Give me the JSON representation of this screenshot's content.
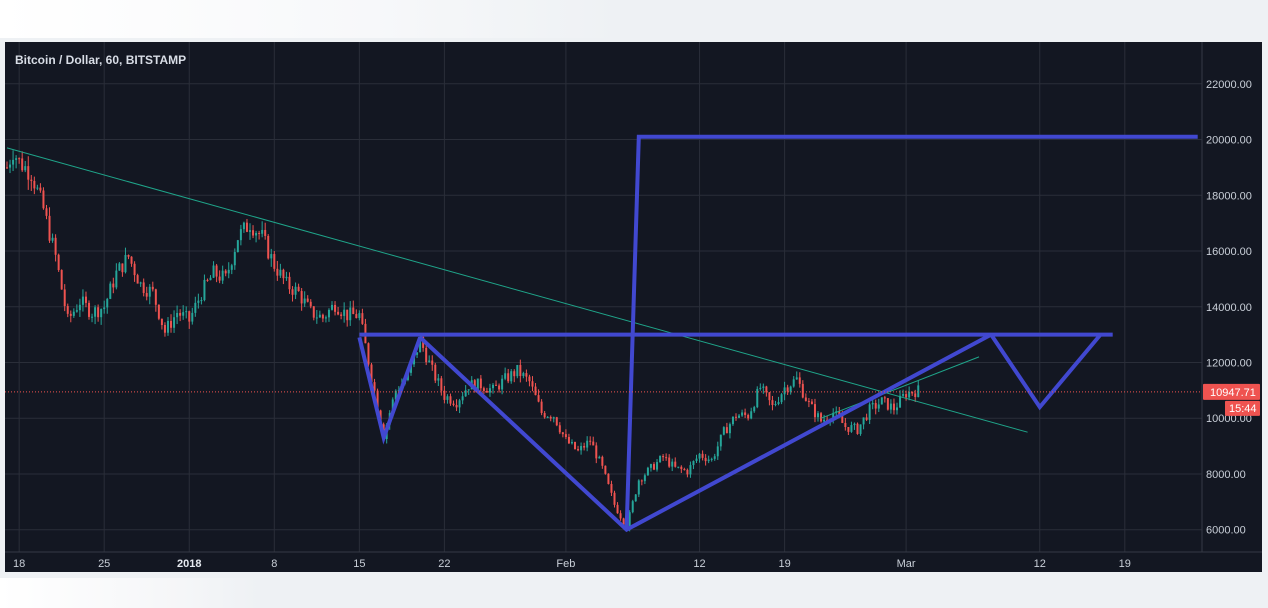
{
  "app": {
    "symbol_title": "Bitcoin / Dollar, 60, BITSTAMP"
  },
  "colors": {
    "background": "#131722",
    "grid": "#2a2e39",
    "up": "#26a69a",
    "down": "#ef5350",
    "drawing": "#4148d0",
    "trendline": "#1fa58a",
    "price_line": "#ef5350"
  },
  "chart_data": {
    "type": "candlestick",
    "title": "Bitcoin / Dollar, 60, BITSTAMP",
    "timeframe": "60",
    "exchange": "BITSTAMP",
    "x_axis": {
      "start_date": "2017-12-17",
      "end_date": "2018-03-25",
      "tick_labels": [
        {
          "label": "18",
          "date": "2017-12-18"
        },
        {
          "label": "25",
          "date": "2017-12-25"
        },
        {
          "label": "2018",
          "date": "2018-01-01",
          "bold": true
        },
        {
          "label": "8",
          "date": "2018-01-08"
        },
        {
          "label": "15",
          "date": "2018-01-15"
        },
        {
          "label": "22",
          "date": "2018-01-22"
        },
        {
          "label": "Feb",
          "date": "2018-02-01"
        },
        {
          "label": "12",
          "date": "2018-02-12"
        },
        {
          "label": "19",
          "date": "2018-02-19"
        },
        {
          "label": "Mar",
          "date": "2018-03-01"
        },
        {
          "label": "12",
          "date": "2018-03-12"
        },
        {
          "label": "19",
          "date": "2018-03-19"
        }
      ]
    },
    "y_axis": {
      "range": [
        5200,
        23500
      ],
      "ticks": [
        "6000.00",
        "8000.00",
        "10000.00",
        "12000.00",
        "14000.00",
        "16000.00",
        "18000.00",
        "20000.00",
        "22000.00"
      ]
    },
    "last_price": {
      "value": 10947.71,
      "label": "10947.71",
      "countdown": "15:44"
    },
    "price_path": [
      [
        "2017-12-17",
        19000
      ],
      [
        "2017-12-17T12",
        19600
      ],
      [
        "2017-12-18",
        19200
      ],
      [
        "2017-12-19",
        18800
      ],
      [
        "2017-12-20",
        17500
      ],
      [
        "2017-12-21",
        15800
      ],
      [
        "2017-12-22",
        13500
      ],
      [
        "2017-12-23",
        14200
      ],
      [
        "2017-12-24",
        13800
      ],
      [
        "2017-12-25",
        14000
      ],
      [
        "2017-12-26",
        15200
      ],
      [
        "2017-12-27",
        15800
      ],
      [
        "2017-12-28",
        14800
      ],
      [
        "2017-12-29",
        14500
      ],
      [
        "2017-12-30",
        13100
      ],
      [
        "2017-12-31",
        13800
      ],
      [
        "2018-01-01",
        13500
      ],
      [
        "2018-01-02",
        14500
      ],
      [
        "2018-01-03",
        15200
      ],
      [
        "2018-01-04",
        15000
      ],
      [
        "2018-01-05",
        16500
      ],
      [
        "2018-01-06",
        17000
      ],
      [
        "2018-01-07",
        16500
      ],
      [
        "2018-01-08",
        15500
      ],
      [
        "2018-01-09",
        14800
      ],
      [
        "2018-01-10",
        14500
      ],
      [
        "2018-01-11",
        13800
      ],
      [
        "2018-01-12",
        13600
      ],
      [
        "2018-01-13",
        14100
      ],
      [
        "2018-01-14",
        13700
      ],
      [
        "2018-01-15",
        13700
      ],
      [
        "2018-01-16",
        11500
      ],
      [
        "2018-01-17",
        9400
      ],
      [
        "2018-01-18",
        11000
      ],
      [
        "2018-01-19",
        11500
      ],
      [
        "2018-01-20",
        12800
      ],
      [
        "2018-01-21",
        11700
      ],
      [
        "2018-01-22",
        10800
      ],
      [
        "2018-01-23",
        10600
      ],
      [
        "2018-01-24",
        11200
      ],
      [
        "2018-01-25",
        11200
      ],
      [
        "2018-01-26",
        11000
      ],
      [
        "2018-01-27",
        11400
      ],
      [
        "2018-01-28",
        11700
      ],
      [
        "2018-01-29",
        11300
      ],
      [
        "2018-01-30",
        10200
      ],
      [
        "2018-01-31",
        10100
      ],
      [
        "2018-02-01",
        9200
      ],
      [
        "2018-02-02",
        8800
      ],
      [
        "2018-02-03",
        9200
      ],
      [
        "2018-02-04",
        8200
      ],
      [
        "2018-02-05",
        6900
      ],
      [
        "2018-02-06",
        6100
      ],
      [
        "2018-02-07",
        7800
      ],
      [
        "2018-02-08",
        8200
      ],
      [
        "2018-02-09",
        8600
      ],
      [
        "2018-02-10",
        8200
      ],
      [
        "2018-02-11",
        8100
      ],
      [
        "2018-02-12",
        8700
      ],
      [
        "2018-02-13",
        8500
      ],
      [
        "2018-02-14",
        9500
      ],
      [
        "2018-02-15",
        10100
      ],
      [
        "2018-02-16",
        10100
      ],
      [
        "2018-02-17",
        11100
      ],
      [
        "2018-02-18",
        10400
      ],
      [
        "2018-02-19",
        11100
      ],
      [
        "2018-02-20",
        11400
      ],
      [
        "2018-02-21",
        10500
      ],
      [
        "2018-02-22",
        9900
      ],
      [
        "2018-02-23",
        10200
      ],
      [
        "2018-02-24",
        9700
      ],
      [
        "2018-02-25",
        9600
      ],
      [
        "2018-02-26",
        10300
      ],
      [
        "2018-02-27",
        10600
      ],
      [
        "2018-02-28",
        10350
      ],
      [
        "2018-03-01",
        10900
      ],
      [
        "2018-03-02",
        11000
      ]
    ],
    "drawings": [
      {
        "name": "descending-trendline",
        "kind": "thin",
        "points": [
          [
            "2017-12-17",
            19700
          ],
          [
            "2018-03-11",
            9500
          ]
        ]
      },
      {
        "name": "recent-trendline",
        "kind": "thin",
        "points": [
          [
            "2018-02-22",
            10000
          ],
          [
            "2018-03-07",
            12200
          ]
        ]
      },
      {
        "name": "neckline",
        "kind": "thick",
        "points": [
          [
            "2018-01-15",
            13000
          ],
          [
            "2018-03-18",
            13000
          ]
        ]
      },
      {
        "name": "left-shoulder",
        "kind": "thick",
        "points": [
          [
            "2018-01-15",
            12900
          ],
          [
            "2018-01-17",
            9300
          ],
          [
            "2018-01-20",
            12900
          ]
        ]
      },
      {
        "name": "head",
        "kind": "thick",
        "points": [
          [
            "2018-01-20",
            12900
          ],
          [
            "2018-02-06",
            6000
          ],
          [
            "2018-03-08",
            13000
          ]
        ]
      },
      {
        "name": "right-shoulder-projection",
        "kind": "thick",
        "points": [
          [
            "2018-03-08",
            13000
          ],
          [
            "2018-03-12",
            10400
          ],
          [
            "2018-03-17",
            13000
          ]
        ]
      },
      {
        "name": "breakout-target",
        "kind": "thick",
        "points": [
          [
            "2018-02-06",
            6000
          ],
          [
            "2018-02-07",
            20100
          ],
          [
            "2018-03-25",
            20100
          ]
        ]
      }
    ]
  }
}
